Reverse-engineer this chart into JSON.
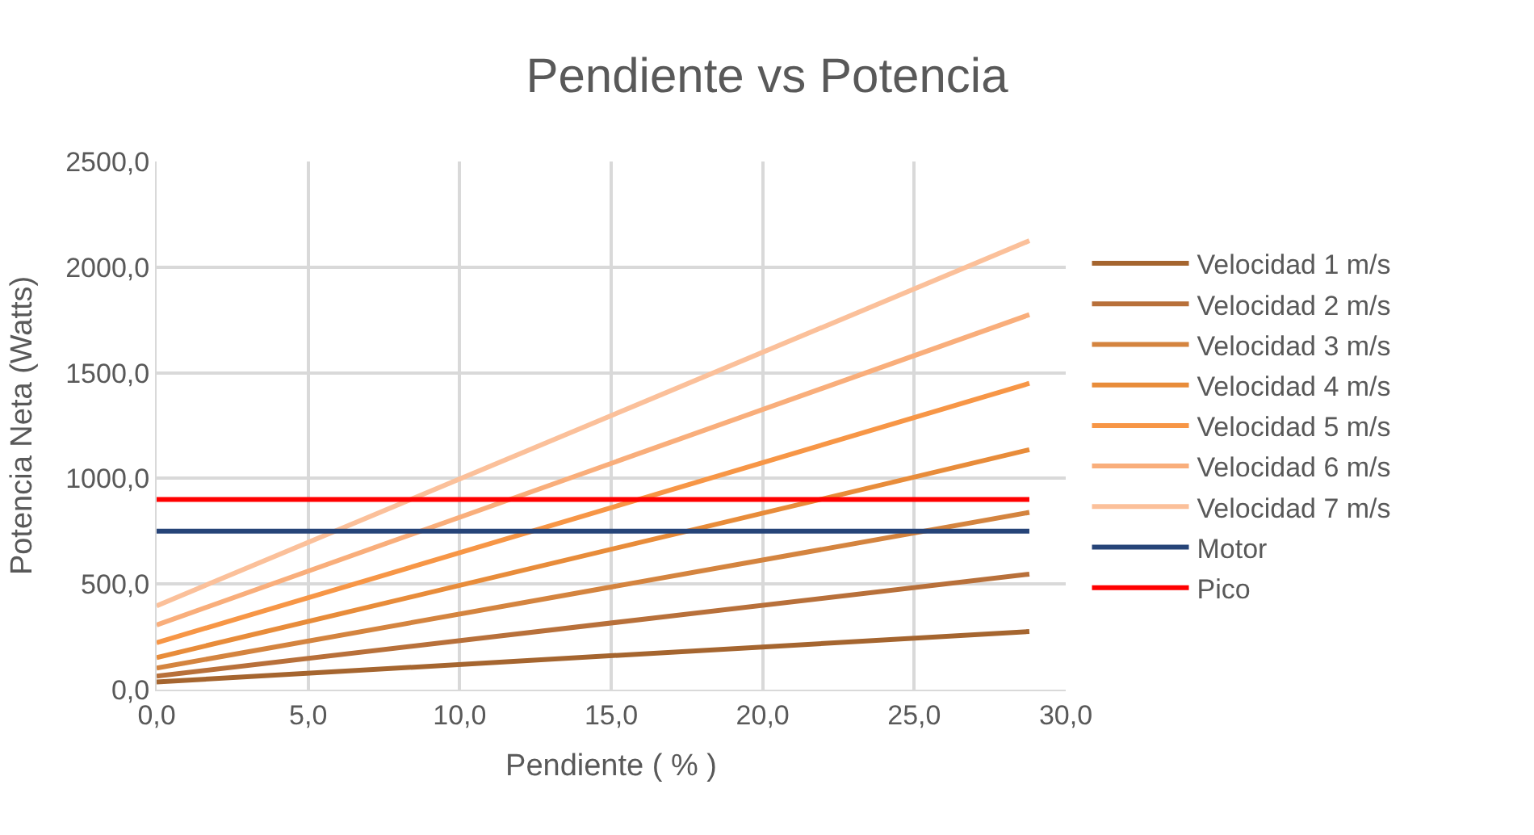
{
  "chart_data": {
    "type": "line",
    "title": "Pendiente vs Potencia",
    "xlabel": "Pendiente ( % )",
    "ylabel": "Potencia Neta (Watts)",
    "x": [
      0,
      28.8
    ],
    "series": [
      {
        "name": "Velocidad 1 m/s",
        "color": "#a5652f",
        "values": [
          36,
          275
        ]
      },
      {
        "name": "Velocidad 2 m/s",
        "color": "#b8703a",
        "values": [
          64,
          547
        ]
      },
      {
        "name": "Velocidad 3 m/s",
        "color": "#d4843f",
        "values": [
          102,
          839
        ]
      },
      {
        "name": "Velocidad 4 m/s",
        "color": "#e88c3a",
        "values": [
          152,
          1136
        ]
      },
      {
        "name": "Velocidad 5 m/s",
        "color": "#f79646",
        "values": [
          222,
          1450
        ]
      },
      {
        "name": "Velocidad 6 m/s",
        "color": "#f9ae7b",
        "values": [
          306,
          1775
        ]
      },
      {
        "name": "Velocidad 7 m/s",
        "color": "#fbc09a",
        "values": [
          397,
          2125
        ]
      },
      {
        "name": "Motor",
        "color": "#264478",
        "values": [
          750,
          750
        ]
      },
      {
        "name": "Pico",
        "color": "#ff0000",
        "values": [
          900,
          900
        ]
      }
    ],
    "xlim": [
      0,
      30
    ],
    "ylim": [
      0,
      2500
    ],
    "xticks": [
      {
        "value": 0,
        "label": "0,0"
      },
      {
        "value": 5,
        "label": "5,0"
      },
      {
        "value": 10,
        "label": "10,0"
      },
      {
        "value": 15,
        "label": "15,0"
      },
      {
        "value": 20,
        "label": "20,0"
      },
      {
        "value": 25,
        "label": "25,0"
      },
      {
        "value": 30,
        "label": "30,0"
      }
    ],
    "yticks": [
      {
        "value": 0,
        "label": "0,0"
      },
      {
        "value": 500,
        "label": "500,0"
      },
      {
        "value": 1000,
        "label": "1000,0"
      },
      {
        "value": 1500,
        "label": "1500,0"
      },
      {
        "value": 2000,
        "label": "2000,0"
      },
      {
        "value": 2500,
        "label": "2500,0"
      }
    ],
    "grid": true,
    "legend": "right",
    "marker": "none",
    "line_style": "solid"
  }
}
